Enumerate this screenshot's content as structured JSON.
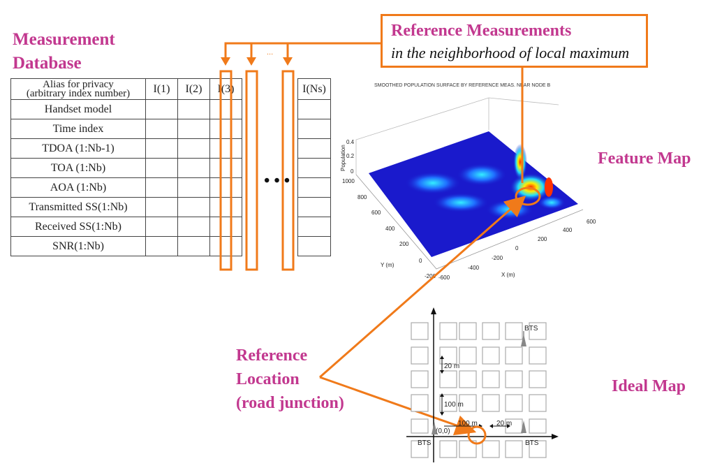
{
  "titles": {
    "database_line1": "Measurement",
    "database_line2": "Database",
    "feature_map": "Feature Map",
    "ideal_map": "Ideal Map",
    "ref_location_line1": "Reference",
    "ref_location_line2": "Location",
    "ref_location_line3": "(road junction)"
  },
  "ref_box": {
    "title": "Reference Measurements",
    "subtitle": "in the neighborhood of local maximum"
  },
  "table": {
    "header": {
      "alias_line1": "Alias for privacy",
      "alias_line2": "(arbitrary index number)",
      "c1": "I(1)",
      "c2": "I(2)",
      "c3": "I(3)",
      "cn": "I(Ns)"
    },
    "rows": [
      "Handset model",
      "Time index",
      "TDOA (1:Nb-1)",
      "TOA (1:Nb)",
      "AOA (1:Nb)",
      "Transmitted SS(1:Nb)",
      "Received SS(1:Nb)",
      "SNR(1:Nb)"
    ]
  },
  "ellipsis_top": "...",
  "ellipsis_mid": "• • •",
  "plot": {
    "title": "SMOOTHED POPULATION SURFACE BY REFERENCE MEAS. NEAR NODE B",
    "zlabel": "Population",
    "ylabel": "Y (m)",
    "xlabel": "X (m)",
    "z_ticks": [
      "0.4",
      "0.2",
      "0"
    ],
    "y_ticks": [
      "1000",
      "800",
      "600",
      "400",
      "200",
      "0",
      "-200"
    ],
    "x_ticks": [
      "-600",
      "-400",
      "-200",
      "0",
      "200",
      "400",
      "600"
    ]
  },
  "ideal_map": {
    "bts": "BTS",
    "dist_20_vertical": "20 m",
    "dist_100_vertical": "100 m",
    "dist_100_horizontal": "100 m",
    "dist_20_horizontal": "20 m",
    "origin": "(0,0)"
  },
  "colors": {
    "accent": "#f07a1a",
    "label": "#c2388f"
  }
}
